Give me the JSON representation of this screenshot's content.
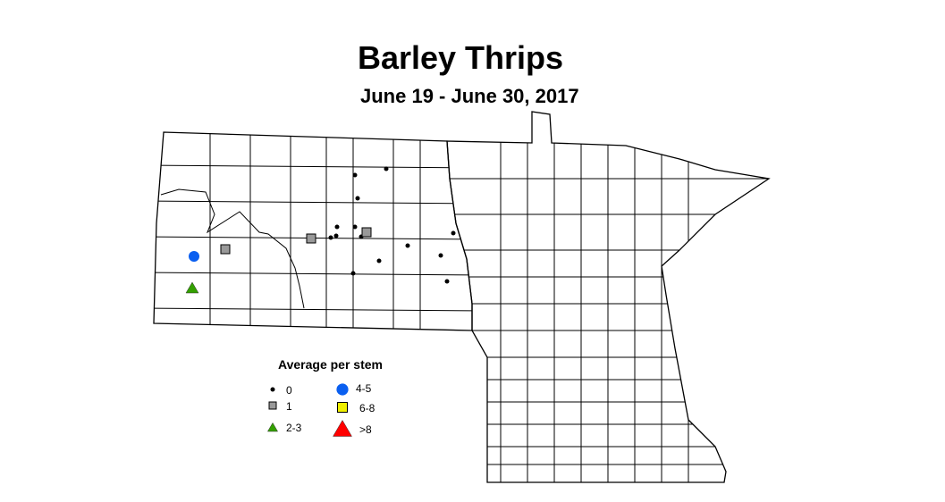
{
  "title": "Barley Thrips",
  "subtitle": "June 19 - June 30, 2017",
  "legend": {
    "title": "Average per stem",
    "items": [
      {
        "label": "0",
        "shape": "dot",
        "color": "#000000"
      },
      {
        "label": "1",
        "shape": "square",
        "color": "#999999"
      },
      {
        "label": "2-3",
        "shape": "triangle",
        "color": "#33a000"
      },
      {
        "label": "4-5",
        "shape": "circle",
        "color": "#0a5ff0"
      },
      {
        "label": "6-8",
        "shape": "square",
        "color": "#f0f000"
      },
      {
        "label": ">8",
        "shape": "triangle",
        "color": "#ff0000"
      }
    ]
  },
  "observation_categories": [
    "0",
    "0",
    "0",
    "0",
    "0",
    "0",
    "0",
    "0",
    "0",
    "0",
    "0",
    "0",
    "0",
    "0",
    "1",
    "1",
    "1",
    "4-5",
    "2-3"
  ]
}
